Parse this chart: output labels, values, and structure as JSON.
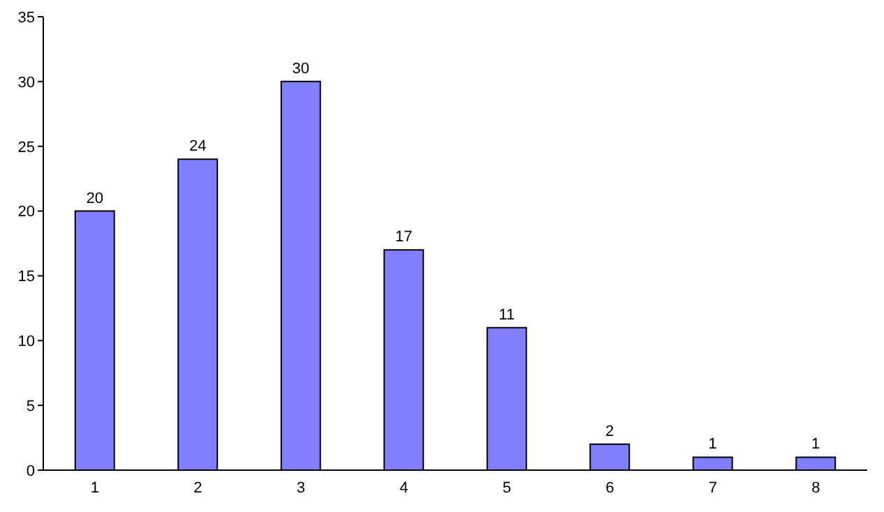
{
  "chart_data": {
    "type": "bar",
    "categories": [
      "1",
      "2",
      "3",
      "4",
      "5",
      "6",
      "7",
      "8"
    ],
    "values": [
      20,
      24,
      30,
      17,
      11,
      2,
      1,
      1
    ],
    "color": "#8080ff",
    "ylim": [
      0,
      35
    ],
    "yticks": [
      0,
      5,
      10,
      15,
      20,
      25,
      30,
      35
    ],
    "grid": false,
    "data_labels": true
  }
}
